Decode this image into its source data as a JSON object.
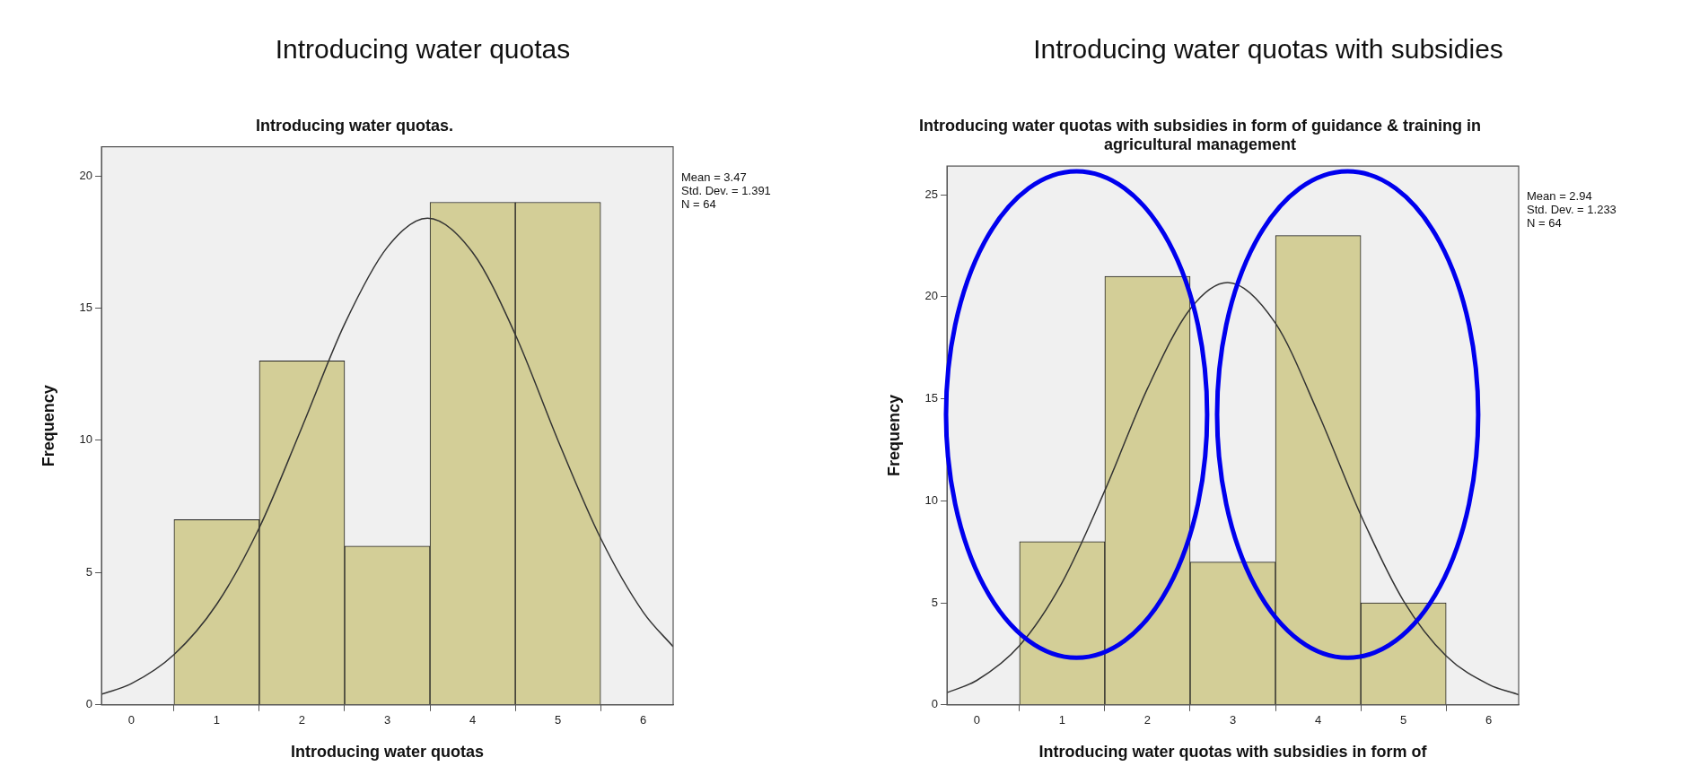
{
  "chart_data": [
    {
      "type": "histogram",
      "title": "Introducing water quotas",
      "subtitle": "Introducing water quotas.",
      "xlabel": "Introducing water quotas",
      "ylabel": "Frequency",
      "bins": [
        0.5,
        1.5,
        2.5,
        3.5,
        4.5,
        5.5
      ],
      "values": [
        7,
        13,
        6,
        19,
        19
      ],
      "color": "#d3ce97",
      "series": [
        {
          "type": "line",
          "color": "#333333",
          "x": [
            -0.35,
            0,
            0.5,
            1,
            1.5,
            2,
            2.5,
            3,
            3.47,
            4,
            4.5,
            5,
            5.5,
            6,
            6.35
          ],
          "values": [
            0.4,
            0.8,
            1.9,
            3.8,
            6.7,
            10.5,
            14.4,
            17.3,
            18.4,
            17.1,
            14.0,
            10.0,
            6.3,
            3.5,
            2.2
          ]
        }
      ],
      "xlim": [
        -0.35,
        6.35
      ],
      "xticks": [
        0,
        1,
        2,
        3,
        4,
        5,
        6
      ],
      "ylim": [
        0,
        21.1
      ],
      "yticks": [
        0,
        5,
        10,
        15,
        20
      ],
      "annotations": [
        "Mean = 3.47",
        "Std. Dev. = 1.391",
        "N = 64"
      ],
      "grid": false,
      "legend": false,
      "marker": "none"
    },
    {
      "type": "histogram",
      "title": "Introducing water quotas with subsidies",
      "subtitle": "Introducing water quotas with subsidies in form of guidance & training in agricultural management",
      "xlabel": "Introducing water quotas with subsidies in form of",
      "ylabel": "Frequency",
      "bins": [
        0.5,
        1.5,
        2.5,
        3.5,
        4.5,
        5.5
      ],
      "values": [
        8,
        21,
        7,
        23,
        5
      ],
      "color": "#d3ce97",
      "series": [
        {
          "type": "line",
          "color": "#333333",
          "x": [
            -0.35,
            0,
            0.5,
            1,
            1.5,
            2,
            2.5,
            2.94,
            3.5,
            4,
            4.5,
            5,
            5.5,
            6,
            6.35
          ],
          "values": [
            0.6,
            1.2,
            2.9,
            6.0,
            10.5,
            15.5,
            19.4,
            20.7,
            18.7,
            14.3,
            9.3,
            5.1,
            2.4,
            1.0,
            0.5
          ]
        }
      ],
      "xlim": [
        -0.35,
        6.35
      ],
      "xticks": [
        0,
        1,
        2,
        3,
        4,
        5,
        6
      ],
      "ylim": [
        0,
        26.4
      ],
      "yticks": [
        0,
        5,
        10,
        15,
        20,
        25
      ],
      "annotations": [
        "Mean = 2.94",
        "Std. Dev. = 1.233",
        "N = 64"
      ],
      "grid": false,
      "legend": false,
      "marker": "none"
    }
  ]
}
